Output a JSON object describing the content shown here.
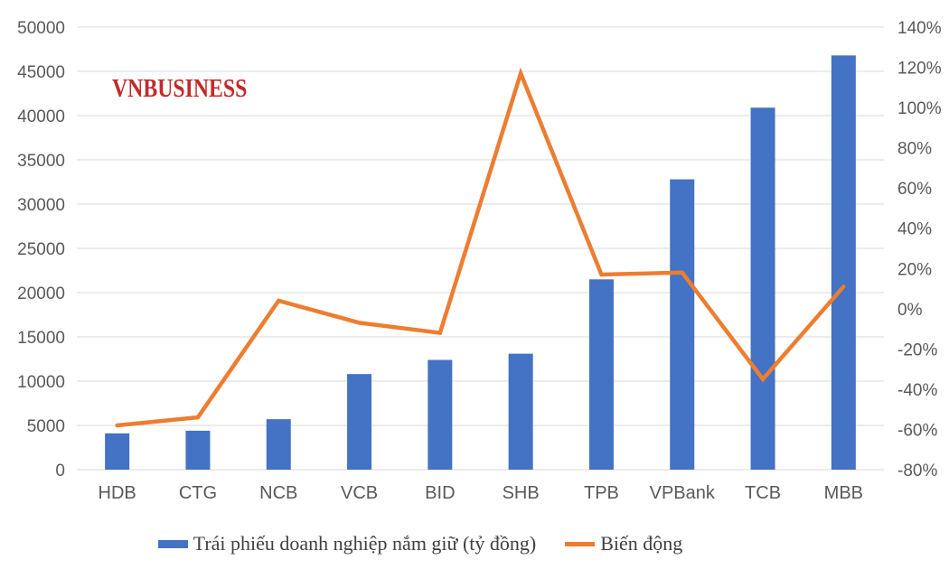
{
  "watermark": {
    "text": "VNBUSINESS",
    "color": "#C42A2A"
  },
  "chart_data": {
    "type": "combo-bar-line",
    "title": "",
    "categories": [
      "HDB",
      "CTG",
      "NCB",
      "VCB",
      "BID",
      "SHB",
      "TPB",
      "VPBank",
      "TCB",
      "MBB"
    ],
    "series": [
      {
        "name": "Trái phiếu doanh nghiệp nắm giữ (tỷ đồng)",
        "type": "bar",
        "axis": "left",
        "color": "#4472C4",
        "values": [
          4100,
          4400,
          5700,
          10800,
          12400,
          13100,
          21500,
          32800,
          40900,
          46800
        ]
      },
      {
        "name": "Biến động",
        "type": "line",
        "axis": "right",
        "color": "#ED7D31",
        "unit": "%",
        "values": [
          -58,
          -54,
          4,
          -7,
          -12,
          117,
          17,
          18,
          -35,
          11
        ]
      }
    ],
    "left_axis": {
      "min": 0,
      "max": 50000,
      "step": 5000,
      "ticks": [
        "0",
        "5000",
        "10000",
        "15000",
        "20000",
        "25000",
        "30000",
        "35000",
        "40000",
        "45000",
        "50000"
      ]
    },
    "right_axis": {
      "min": -80,
      "max": 140,
      "step": 20,
      "ticks": [
        "-80%",
        "-60%",
        "-40%",
        "-20%",
        "0%",
        "20%",
        "40%",
        "60%",
        "80%",
        "100%",
        "120%",
        "140%"
      ]
    },
    "grid": "horizontal",
    "gridline_color": "#D9D9D9",
    "axis_text_color": "#595959",
    "legend_position": "bottom"
  }
}
